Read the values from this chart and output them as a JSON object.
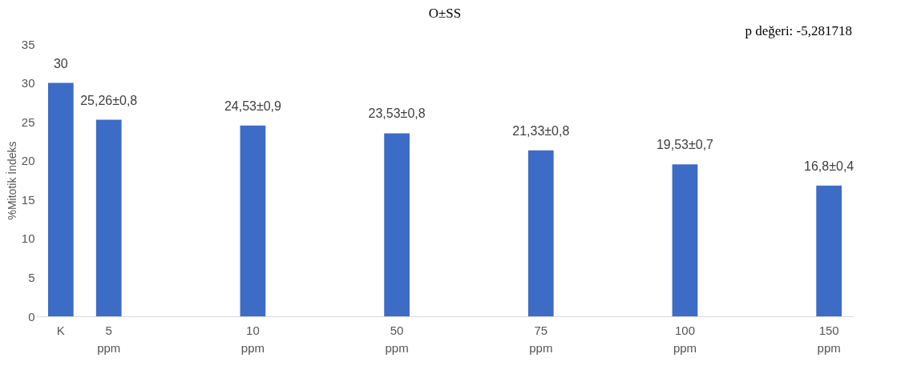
{
  "chart_data": {
    "type": "bar",
    "title": "O±SS",
    "ylabel": "%Mitotik İndeks",
    "annotations": [
      "p değeri: -5,281718"
    ],
    "categories": [
      "K",
      "5 ppm",
      null,
      null,
      "10 ppm",
      null,
      null,
      "50 ppm",
      null,
      null,
      "75 ppm",
      null,
      null,
      "100 ppm",
      null,
      null,
      "150 ppm"
    ],
    "values": [
      30,
      25.26,
      null,
      null,
      24.53,
      null,
      null,
      23.53,
      null,
      null,
      21.33,
      null,
      null,
      19.53,
      null,
      null,
      16.8
    ],
    "value_labels": [
      "30",
      "25,26±0,8",
      null,
      null,
      "24,53±0,9",
      null,
      null,
      "23,53±0,8",
      null,
      null,
      "21,33±0,8",
      null,
      null,
      "19,53±0,7",
      null,
      null,
      "16,8±0,4"
    ],
    "color": "#3d6cc6",
    "ylim": [
      0,
      35
    ],
    "yticks": [
      0,
      5,
      10,
      15,
      20,
      25,
      30,
      35
    ],
    "grid": false
  }
}
